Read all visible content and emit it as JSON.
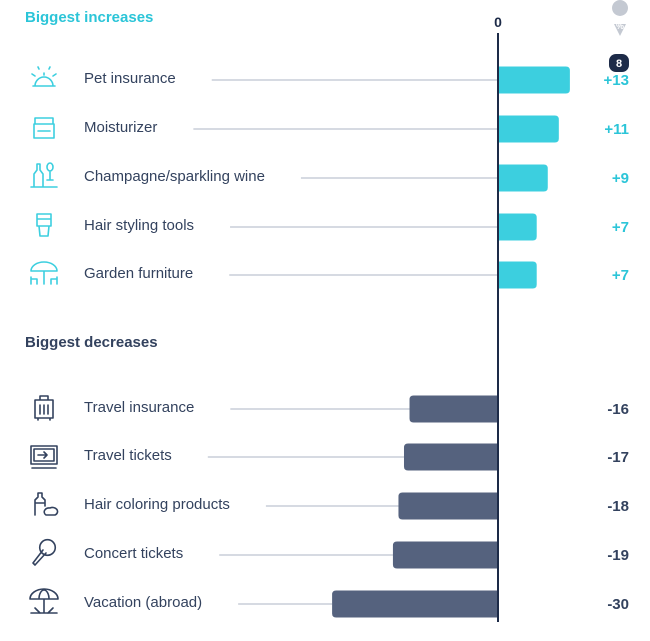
{
  "chart_data": {
    "type": "bar",
    "orientation": "horizontal",
    "zero_label": "0",
    "unit_icon": "percent-pin-icon",
    "badge": "8",
    "colors": {
      "increase": "#3ccfdf",
      "decrease": "#55627e",
      "axis": "#1d2b48",
      "increase_text": "#2cc5d8",
      "decrease_text": "#33425e",
      "leader": "#c9ced8"
    },
    "groups": [
      {
        "title": "Biggest increases",
        "items": [
          {
            "label": "Pet insurance",
            "value": 13,
            "value_label": "+13",
            "icon": "pet-bell-icon"
          },
          {
            "label": "Moisturizer",
            "value": 11,
            "value_label": "+11",
            "icon": "cream-jar-icon"
          },
          {
            "label": "Champagne/sparkling wine",
            "value": 9,
            "value_label": "+9",
            "icon": "champagne-icon"
          },
          {
            "label": "Hair styling tools",
            "value": 7,
            "value_label": "+7",
            "icon": "hair-tool-icon"
          },
          {
            "label": "Garden furniture",
            "value": 7,
            "value_label": "+7",
            "icon": "garden-table-icon"
          }
        ]
      },
      {
        "title": "Biggest decreases",
        "items": [
          {
            "label": "Travel insurance",
            "value": -16,
            "value_label": "-16",
            "icon": "luggage-icon"
          },
          {
            "label": "Travel tickets",
            "value": -17,
            "value_label": "-17",
            "icon": "ticket-icon"
          },
          {
            "label": "Hair coloring products",
            "value": -18,
            "value_label": "-18",
            "icon": "dye-bottle-icon"
          },
          {
            "label": "Concert tickets",
            "value": -19,
            "value_label": "-19",
            "icon": "microphone-icon"
          },
          {
            "label": "Vacation (abroad)",
            "value": -30,
            "value_label": "-30",
            "icon": "beach-umbrella-icon"
          }
        ]
      }
    ]
  }
}
